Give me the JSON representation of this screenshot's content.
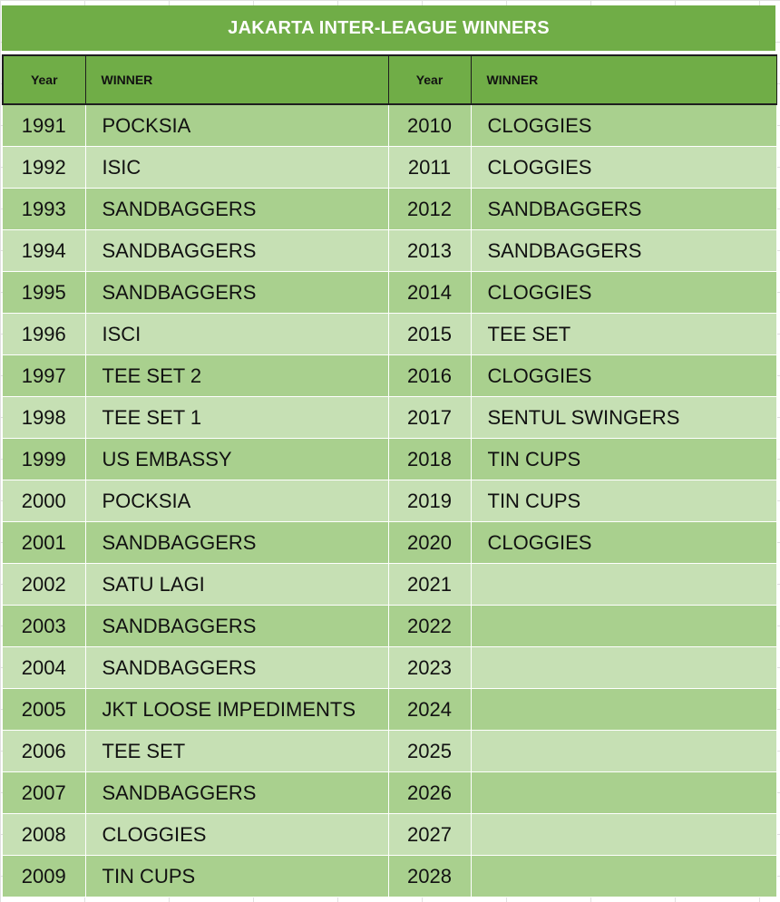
{
  "title": "JAKARTA INTER-LEAGUE WINNERS",
  "headers": {
    "year": "Year",
    "winner": "WINNER"
  },
  "left_rows": [
    {
      "year": "1991",
      "winner": "POCKSIA"
    },
    {
      "year": "1992",
      "winner": "ISIC"
    },
    {
      "year": "1993",
      "winner": "SANDBAGGERS"
    },
    {
      "year": "1994",
      "winner": "SANDBAGGERS"
    },
    {
      "year": "1995",
      "winner": "SANDBAGGERS"
    },
    {
      "year": "1996",
      "winner": "ISCI"
    },
    {
      "year": "1997",
      "winner": "TEE SET 2"
    },
    {
      "year": "1998",
      "winner": "TEE SET 1"
    },
    {
      "year": "1999",
      "winner": "US EMBASSY"
    },
    {
      "year": "2000",
      "winner": "POCKSIA"
    },
    {
      "year": "2001",
      "winner": "SANDBAGGERS"
    },
    {
      "year": "2002",
      "winner": "SATU LAGI"
    },
    {
      "year": "2003",
      "winner": "SANDBAGGERS"
    },
    {
      "year": "2004",
      "winner": "SANDBAGGERS"
    },
    {
      "year": "2005",
      "winner": "JKT LOOSE IMPEDIMENTS"
    },
    {
      "year": "2006",
      "winner": "TEE SET"
    },
    {
      "year": "2007",
      "winner": "SANDBAGGERS"
    },
    {
      "year": "2008",
      "winner": "CLOGGIES"
    },
    {
      "year": "2009",
      "winner": "TIN CUPS"
    }
  ],
  "right_rows": [
    {
      "year": "2010",
      "winner": "CLOGGIES"
    },
    {
      "year": "2011",
      "winner": "CLOGGIES"
    },
    {
      "year": "2012",
      "winner": "SANDBAGGERS"
    },
    {
      "year": "2013",
      "winner": "SANDBAGGERS"
    },
    {
      "year": "2014",
      "winner": "CLOGGIES"
    },
    {
      "year": "2015",
      "winner": "TEE SET"
    },
    {
      "year": "2016",
      "winner": "CLOGGIES"
    },
    {
      "year": "2017",
      "winner": "SENTUL SWINGERS"
    },
    {
      "year": "2018",
      "winner": "TIN CUPS"
    },
    {
      "year": "2019",
      "winner": "TIN CUPS"
    },
    {
      "year": "2020",
      "winner": "CLOGGIES"
    },
    {
      "year": "2021",
      "winner": ""
    },
    {
      "year": "2022",
      "winner": ""
    },
    {
      "year": "2023",
      "winner": ""
    },
    {
      "year": "2024",
      "winner": ""
    },
    {
      "year": "2025",
      "winner": ""
    },
    {
      "year": "2026",
      "winner": ""
    },
    {
      "year": "2027",
      "winner": ""
    },
    {
      "year": "2028",
      "winner": ""
    }
  ],
  "colors": {
    "header_green": "#70ad47",
    "row_dark": "#a9d08e",
    "row_light": "#c6e0b4"
  }
}
